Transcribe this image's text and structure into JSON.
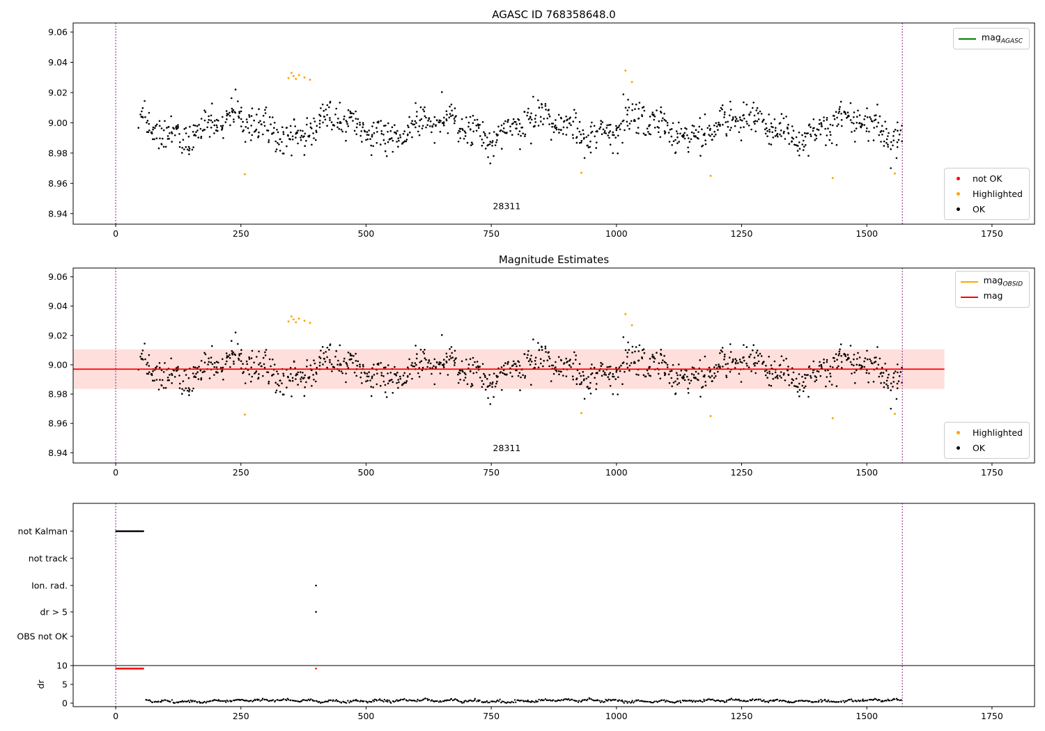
{
  "colors": {
    "ok": "#000000",
    "not_ok": "#ff0000",
    "highlighted": "#ffa500",
    "mag_agasc": "#008000",
    "mag_obsid": "#ffa500",
    "mag": "#ff0000",
    "band": "#ff3b1d",
    "vline": "#800080",
    "frame": "#000000",
    "text": "#000000"
  },
  "legends": {
    "p1_top": [
      {
        "swatch": "line",
        "color": "mag_agasc",
        "text": "mag",
        "sub": "AGASC"
      }
    ],
    "p1_bottom": [
      {
        "swatch": "dot",
        "color": "not_ok",
        "text": "not OK"
      },
      {
        "swatch": "dot",
        "color": "highlighted",
        "text": "Highlighted"
      },
      {
        "swatch": "dot",
        "color": "ok",
        "text": "OK"
      }
    ],
    "p2_top": [
      {
        "swatch": "line",
        "color": "mag_obsid",
        "text": "mag",
        "sub": "OBSID"
      },
      {
        "swatch": "line",
        "color": "mag",
        "text": "mag",
        "sub": ""
      }
    ],
    "p2_bottom": [
      {
        "swatch": "dot",
        "color": "highlighted",
        "text": "Highlighted"
      },
      {
        "swatch": "dot",
        "color": "ok",
        "text": "OK"
      }
    ]
  },
  "chart_data": [
    {
      "type": "scatter",
      "title": "AGASC ID 768358648.0",
      "xlim": [
        -85,
        1835
      ],
      "ylim": [
        8.933,
        9.066
      ],
      "xticks": [
        0,
        250,
        500,
        750,
        1000,
        1250,
        1500,
        1750
      ],
      "yticks": [
        8.94,
        8.96,
        8.98,
        9.0,
        9.02,
        9.04,
        9.06
      ],
      "vlines": [
        0,
        1571
      ],
      "annotation": {
        "text": "28311",
        "x": 781,
        "y": 8.943
      },
      "series_ok": {
        "name": "OK",
        "generator": {
          "seed": 20240717,
          "n": 1150,
          "x_min": 48,
          "x_max": 1570,
          "x_jitter": 5,
          "base": 8.997,
          "waves": [
            {
              "amp": 0.0068,
              "period": 205,
              "phase": 0.7
            },
            {
              "amp": 0.0036,
              "period": 61,
              "phase": 2.4
            }
          ],
          "noise_sigma": 0.0055,
          "min": 8.96,
          "max": 9.0305
        }
      },
      "series_highlighted": {
        "name": "Highlighted",
        "points": [
          [
            345,
            9.0295
          ],
          [
            351,
            9.033
          ],
          [
            355,
            9.031
          ],
          [
            360,
            9.029
          ],
          [
            366,
            9.0315
          ],
          [
            377,
            9.03
          ],
          [
            388,
            9.0285
          ],
          [
            1018,
            9.0345
          ],
          [
            1031,
            9.027
          ],
          [
            258,
            8.966
          ],
          [
            930,
            8.967
          ],
          [
            1188,
            8.965
          ],
          [
            1432,
            8.9635
          ],
          [
            1556,
            8.9665
          ]
        ]
      },
      "series_not_ok": {
        "name": "not OK",
        "points": []
      }
    },
    {
      "type": "scatter",
      "title": "Magnitude Estimates",
      "xlim": [
        -85,
        1835
      ],
      "ylim": [
        8.933,
        9.066
      ],
      "xticks": [
        0,
        250,
        500,
        750,
        1000,
        1250,
        1500,
        1750
      ],
      "yticks": [
        8.94,
        8.96,
        8.98,
        9.0,
        9.02,
        9.04,
        9.06
      ],
      "vlines": [
        0,
        1571
      ],
      "annotation": {
        "text": "28311",
        "x": 781,
        "y": 8.941
      },
      "mag_line": {
        "y": 8.997,
        "x_start": -85,
        "x_end": 1655
      },
      "band": {
        "y_top": 9.0105,
        "y_bottom": 8.9835,
        "x_start": -85,
        "x_end": 1655,
        "opacity": 0.16
      },
      "series_ok": {
        "name": "OK",
        "generator": {
          "seed": 20240717,
          "n": 1150,
          "x_min": 48,
          "x_max": 1570,
          "x_jitter": 5,
          "base": 8.997,
          "waves": [
            {
              "amp": 0.0068,
              "period": 205,
              "phase": 0.7
            },
            {
              "amp": 0.0036,
              "period": 61,
              "phase": 2.4
            }
          ],
          "noise_sigma": 0.0055,
          "min": 8.96,
          "max": 9.0305
        }
      },
      "series_highlighted": {
        "name": "Highlighted",
        "points": [
          [
            345,
            9.0295
          ],
          [
            351,
            9.033
          ],
          [
            355,
            9.031
          ],
          [
            360,
            9.029
          ],
          [
            366,
            9.0315
          ],
          [
            377,
            9.03
          ],
          [
            388,
            9.0285
          ],
          [
            1018,
            9.0345
          ],
          [
            1031,
            9.027
          ],
          [
            258,
            8.966
          ],
          [
            930,
            8.967
          ],
          [
            1188,
            8.965
          ],
          [
            1432,
            8.9635
          ],
          [
            1556,
            8.9665
          ]
        ]
      }
    },
    {
      "type": "scatter",
      "title": "",
      "ylabel": "dr",
      "xlim": [
        -85,
        1835
      ],
      "xticks": [
        0,
        250,
        500,
        750,
        1000,
        1250,
        1500,
        1750
      ],
      "vlines": [
        0,
        1571
      ],
      "rows": [
        {
          "label": "not Kalman",
          "y": 0.863
        },
        {
          "label": "not track",
          "y": 0.7295
        },
        {
          "label": "Ion. rad.",
          "y": 0.596
        },
        {
          "label": "dr > 5",
          "y": 0.466
        },
        {
          "label": "OBS not OK",
          "y": 0.346
        }
      ],
      "dr_ticks": [
        {
          "label": "10",
          "value": 10
        },
        {
          "label": "5",
          "value": 5
        },
        {
          "label": "0",
          "value": 0
        }
      ],
      "dr_scale": {
        "offset": 0.0171,
        "per_unit": 0.0185
      },
      "series": {
        "dr_threshold": 10,
        "not_kalman": {
          "x_start": 1,
          "x_end": 55,
          "step": 1.8
        },
        "ion_rad_x": [
          400
        ],
        "dr_gt5_x": [
          400
        ],
        "dr_red": {
          "x_start": 1,
          "x_end": 55,
          "step": 1.8,
          "value": 9.2
        },
        "dr_red_points": [
          [
            400,
            9.2
          ]
        ],
        "dr_trace": {
          "seed": 777,
          "n": 640,
          "x_min": 60,
          "x_max": 1568,
          "x_jitter": 2,
          "base": 0.62,
          "waves": [
            {
              "amp": 0.22,
              "period": 47,
              "phase": 0.3
            },
            {
              "amp": 0.18,
              "period": 310,
              "phase": 1.7
            }
          ],
          "noise_sigma": 0.16,
          "min": 0.05,
          "max": 2.2
        }
      }
    }
  ]
}
